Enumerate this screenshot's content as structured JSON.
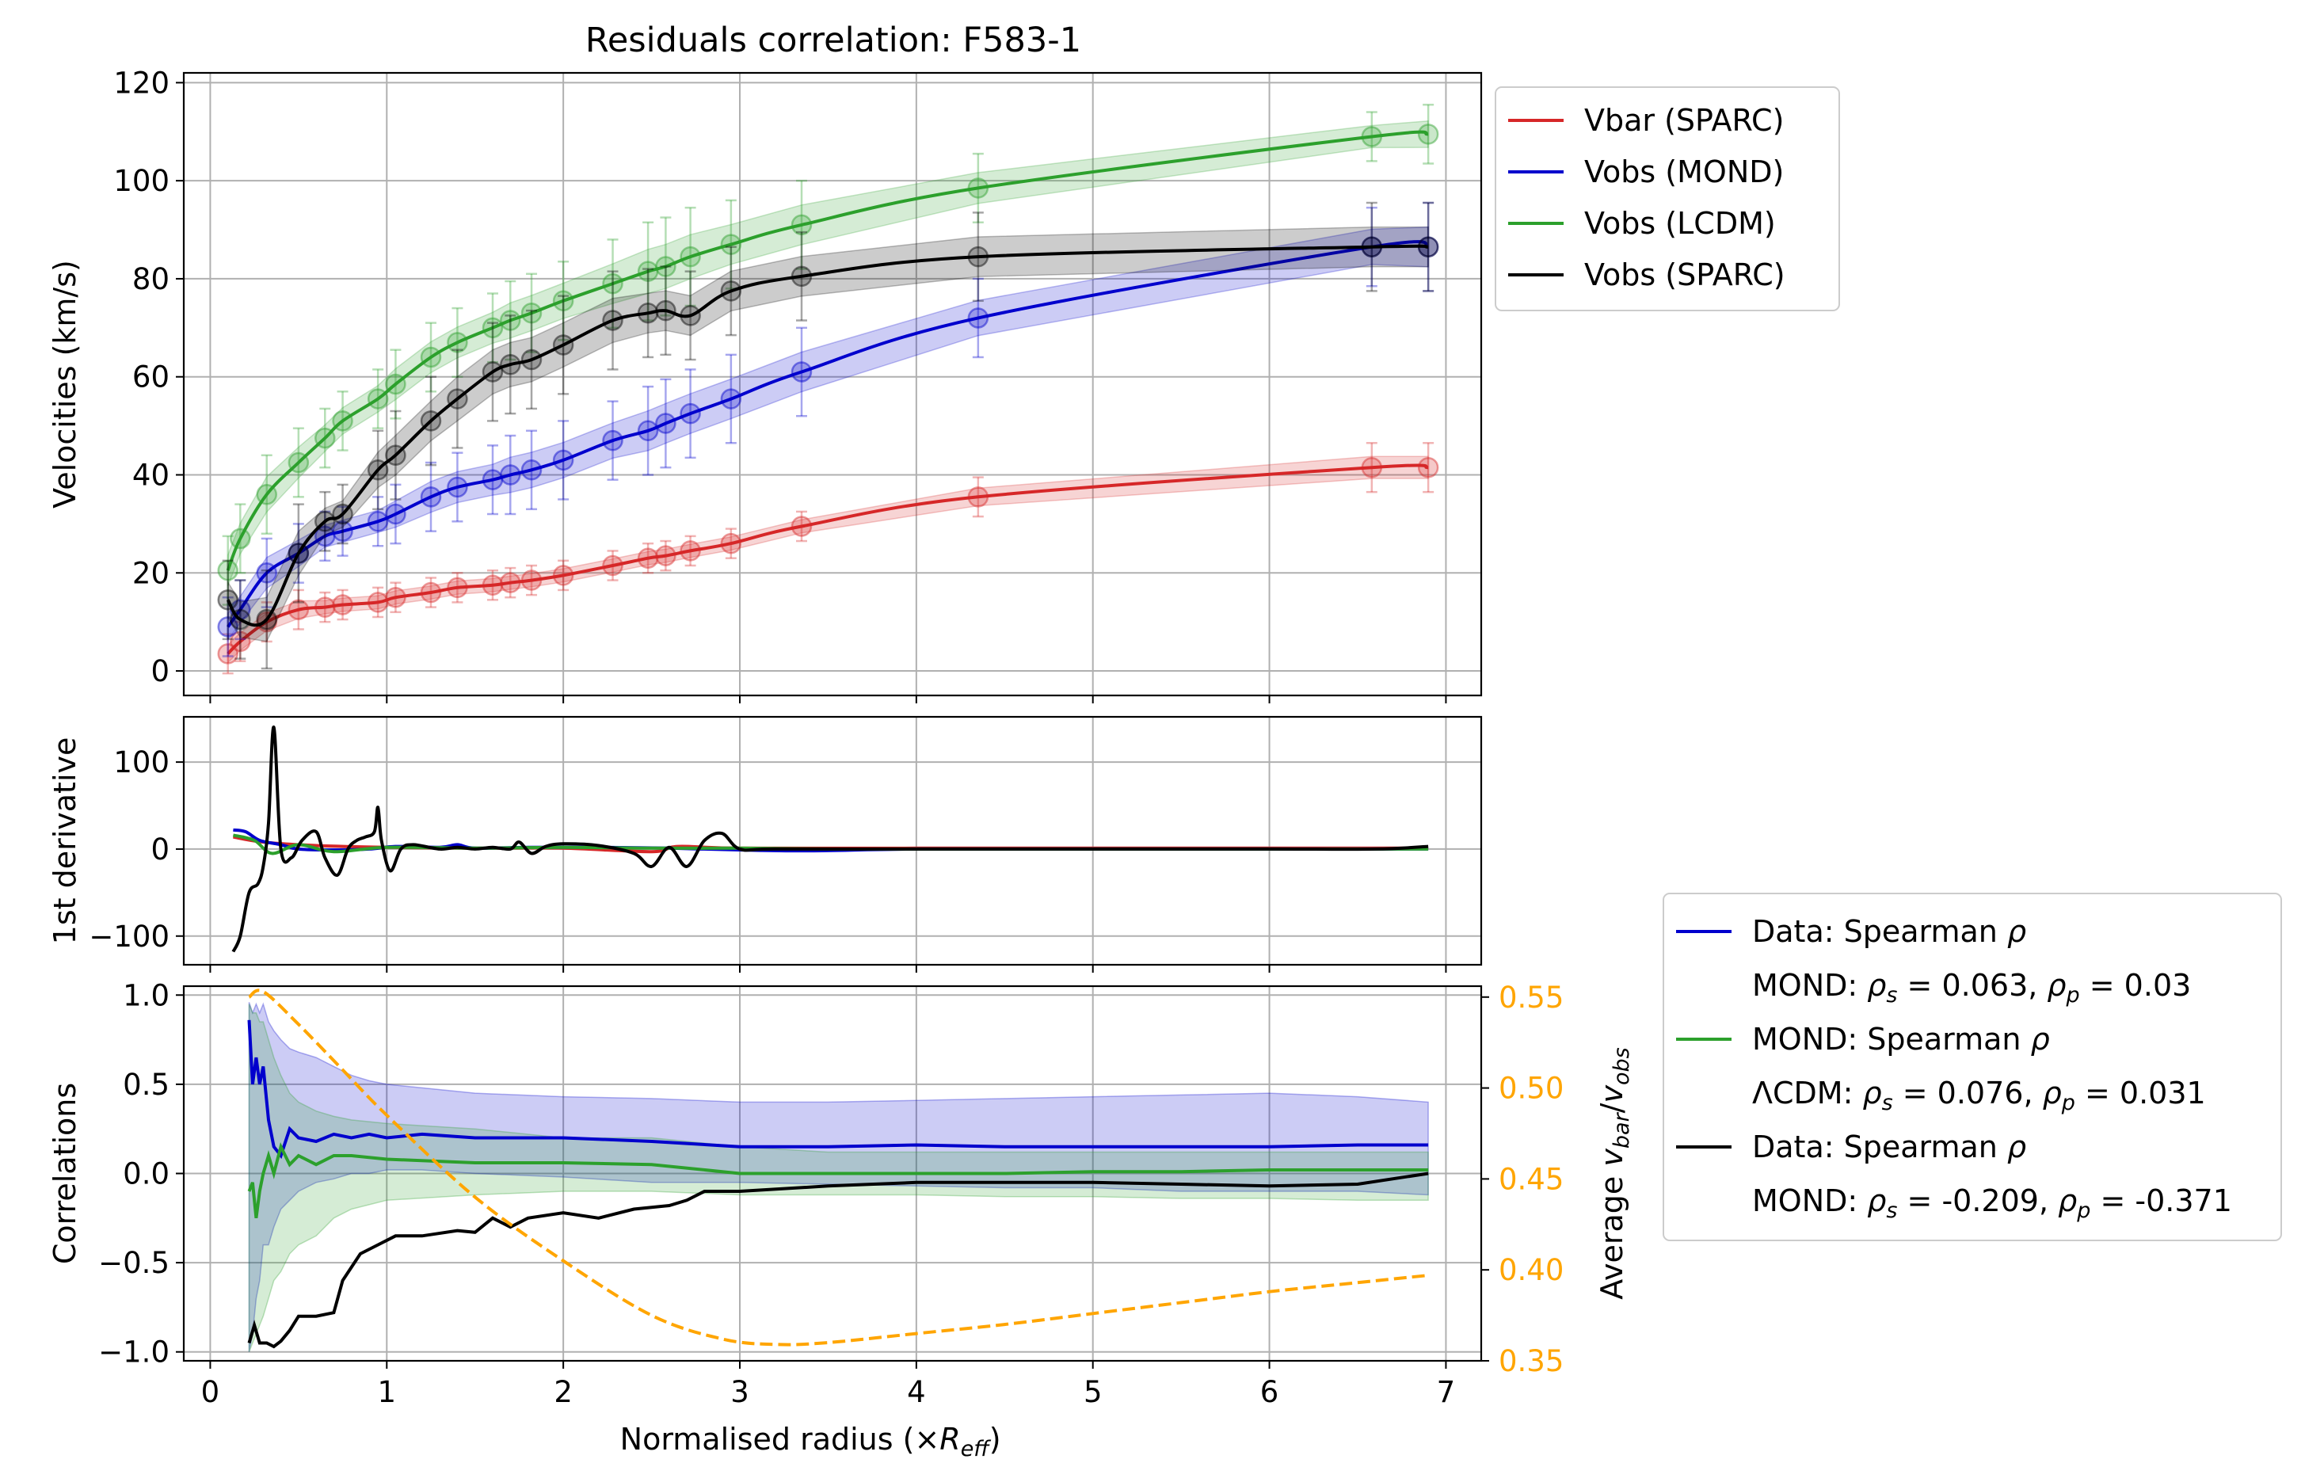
{
  "chart_data": {
    "title": "Residuals correlation: F583-1",
    "xlabel": "Normalised radius (×R_eff)",
    "xlabel_parts": [
      "Normalised radius (×",
      "R",
      "eff",
      ")"
    ],
    "xlim": [
      -0.15,
      7.2
    ],
    "xticks": [
      0,
      1,
      2,
      3,
      4,
      5,
      6,
      7
    ],
    "colors": {
      "vbar": "#d62728",
      "mond": "#0000cd",
      "lcdm": "#2ca02c",
      "sparc": "#000000",
      "ratio": "#ffa500"
    },
    "panels": [
      {
        "type": "line",
        "ylabel": "Velocities (km/s)",
        "ylim": [
          -5,
          122
        ],
        "yticks": [
          0,
          20,
          40,
          60,
          80,
          100,
          120
        ],
        "grid": true,
        "legend": {
          "placement": "outside upper-right",
          "entries": [
            {
              "label": "Vbar (SPARC)",
              "color": "#d62728"
            },
            {
              "label": "Vobs (MOND)",
              "color": "#0000cd"
            },
            {
              "label": "Vobs (LCDM)",
              "color": "#2ca02c"
            },
            {
              "label": "Vobs (SPARC)",
              "color": "#000000"
            }
          ]
        },
        "radii": [
          0.1,
          0.17,
          0.32,
          0.5,
          0.65,
          0.75,
          0.95,
          1.05,
          1.25,
          1.4,
          1.6,
          1.7,
          1.82,
          2.0,
          2.28,
          2.48,
          2.58,
          2.72,
          2.95,
          3.35,
          4.35,
          6.58,
          6.9
        ],
        "series": [
          {
            "name": "Vbar (SPARC)",
            "color": "#d62728",
            "values": [
              3.5,
              6,
              10,
              12.5,
              13,
              13.5,
              14,
              15,
              16,
              17,
              17.5,
              18,
              18.5,
              19.5,
              21.5,
              23,
              23.5,
              24.5,
              26,
              29.5,
              35.5,
              41.5,
              41.5
            ],
            "errors": [
              4,
              4,
              4,
              4,
              3,
              3,
              3,
              3,
              3,
              3,
              3,
              3,
              3,
              3,
              3,
              3,
              3,
              3,
              3,
              3,
              4,
              5,
              5
            ]
          },
          {
            "name": "Vobs (MOND)",
            "color": "#0000cd",
            "values": [
              9,
              12.5,
              20,
              24,
              27.5,
              28.5,
              30.5,
              32,
              35.5,
              37.5,
              39,
              40,
              41,
              43,
              47,
              49,
              50.5,
              52.5,
              55.5,
              61,
              72,
              86.5,
              86.5
            ],
            "errors": [
              6,
              6,
              7,
              6,
              5,
              5,
              5,
              6,
              7,
              7,
              7,
              8,
              8,
              8,
              8,
              9,
              9,
              9,
              9,
              9,
              8,
              8,
              9
            ]
          },
          {
            "name": "Vobs (LCDM)",
            "color": "#2ca02c",
            "values": [
              20.5,
              27,
              36,
              42.5,
              47.5,
              51,
              55.5,
              58.5,
              64,
              67,
              70,
              71.5,
              73,
              75.5,
              79,
              81.5,
              82.5,
              84.5,
              87,
              91,
              98.5,
              109,
              109.5
            ],
            "errors": [
              7,
              7,
              8,
              7,
              6,
              6,
              6,
              7,
              7,
              7,
              7,
              8,
              8,
              8,
              9,
              10,
              10,
              10,
              9,
              9,
              7,
              5,
              6
            ]
          },
          {
            "name": "Vobs (SPARC)",
            "color": "#000000",
            "values": [
              14.5,
              10.5,
              10.5,
              24,
              30.5,
              32,
              41,
              44,
              51,
              55.5,
              61,
              62.5,
              63.5,
              66.5,
              71.5,
              73,
              73.5,
              72.5,
              77.5,
              80.5,
              84.5,
              86.5,
              86.5
            ],
            "errors": [
              8,
              8,
              10,
              10,
              6,
              6,
              8,
              9,
              9,
              10,
              10,
              10,
              10,
              10,
              10,
              9,
              9,
              9,
              9,
              9,
              9,
              9,
              9
            ]
          }
        ]
      },
      {
        "type": "line",
        "ylabel": "1st derivative",
        "ylim": [
          -133,
          152
        ],
        "yticks": [
          -100,
          0,
          100
        ],
        "ytick_labels": [
          "−100",
          "0",
          "100"
        ],
        "grid": true,
        "series": [
          {
            "name": "Vbar (SPARC)",
            "color": "#d62728",
            "x": [
              0.13,
              0.3,
              0.6,
              1.0,
              1.5,
              2.0,
              2.5,
              2.65,
              3.0,
              4.0,
              5.0,
              6.0,
              6.6,
              6.9
            ],
            "values": [
              14,
              8,
              4,
              2,
              1,
              1,
              -3,
              3,
              1,
              1,
              1,
              1,
              1,
              1
            ]
          },
          {
            "name": "Vobs (MOND)",
            "color": "#0000cd",
            "x": [
              0.13,
              0.2,
              0.28,
              0.4,
              0.5,
              0.7,
              0.9,
              1.05,
              1.3,
              1.4,
              1.5,
              1.8,
              2.2,
              2.6,
              3.0,
              3.4,
              4.0,
              5.0,
              6.0,
              6.9
            ],
            "values": [
              22,
              20,
              10,
              5,
              0,
              -1,
              0,
              3,
              2,
              5,
              1,
              2,
              2,
              1,
              -1,
              -2,
              0,
              0,
              0,
              0
            ]
          },
          {
            "name": "Vobs (LCDM)",
            "color": "#2ca02c",
            "x": [
              0.13,
              0.25,
              0.35,
              0.5,
              0.7,
              1.0,
              1.5,
              2.0,
              2.5,
              3.0,
              3.5,
              4.0,
              5.0,
              6.0,
              6.9
            ],
            "values": [
              16,
              10,
              -5,
              5,
              -3,
              2,
              1,
              2,
              1,
              1,
              0,
              0,
              0,
              0,
              0
            ]
          },
          {
            "name": "Vobs (SPARC)",
            "color": "#000000",
            "x": [
              0.13,
              0.17,
              0.22,
              0.27,
              0.3,
              0.33,
              0.36,
              0.4,
              0.46,
              0.52,
              0.6,
              0.65,
              0.72,
              0.78,
              0.83,
              0.88,
              0.93,
              0.95,
              0.97,
              1.02,
              1.08,
              1.15,
              1.3,
              1.4,
              1.5,
              1.6,
              1.7,
              1.75,
              1.82,
              1.9,
              2.0,
              2.2,
              2.4,
              2.5,
              2.6,
              2.7,
              2.8,
              2.9,
              3.0,
              3.2,
              4.0,
              5.0,
              6.0,
              6.6,
              6.9
            ],
            "values": [
              -118,
              -100,
              -50,
              -40,
              -20,
              30,
              140,
              0,
              -10,
              10,
              20,
              -10,
              -30,
              0,
              10,
              14,
              20,
              48,
              10,
              -25,
              0,
              5,
              0,
              2,
              0,
              2,
              0,
              8,
              -5,
              3,
              6,
              4,
              -5,
              -20,
              2,
              -20,
              10,
              18,
              0,
              0,
              0,
              0,
              0,
              0,
              3
            ]
          }
        ]
      },
      {
        "type": "line",
        "ylabel": "Correlations",
        "ylim": [
          -1.05,
          1.05
        ],
        "yticks": [
          -1.0,
          -0.5,
          0.0,
          0.5,
          1.0
        ],
        "ytick_labels": [
          "−1.0",
          "−0.5",
          "0.0",
          "0.5",
          "1.0"
        ],
        "grid": true,
        "secondary_axis": {
          "ylabel": "Average v_bar/v_obs",
          "ylabel_parts": [
            "Average ",
            "v",
            "bar",
            "/",
            "v",
            "obs"
          ],
          "ylim": [
            0.35,
            0.556
          ],
          "yticks": [
            0.35,
            0.4,
            0.45,
            0.5,
            0.55
          ],
          "ytick_labels": [
            "0.35",
            "0.40",
            "0.45",
            "0.50",
            "0.55"
          ],
          "color": "#ffa500",
          "x": [
            0.22,
            0.3,
            0.5,
            0.75,
            1.0,
            1.5,
            2.0,
            2.5,
            2.9,
            3.2,
            3.5,
            4.0,
            4.5,
            5.0,
            5.5,
            6.0,
            6.5,
            6.9
          ],
          "values": [
            0.55,
            0.553,
            0.535,
            0.51,
            0.485,
            0.44,
            0.405,
            0.375,
            0.362,
            0.359,
            0.36,
            0.365,
            0.37,
            0.376,
            0.382,
            0.388,
            0.393,
            0.397
          ]
        },
        "legend": {
          "placement": "outside lower-right",
          "entries": [
            {
              "label": "Data: Spearman ρ",
              "color": "#0000cd",
              "parts": [
                "Data: Spearman ",
                "ρ"
              ],
              "stats": [
                "MOND: ",
                "ρ",
                "s",
                " = 0.063, ",
                "ρ",
                "p",
                " = 0.03"
              ]
            },
            {
              "label": "MOND: Spearman ρ",
              "color": "#2ca02c",
              "parts": [
                "MOND: Spearman ",
                "ρ"
              ],
              "stats": [
                "ΛCDM: ",
                "ρ",
                "s",
                " = 0.076, ",
                "ρ",
                "p",
                " = 0.031"
              ]
            },
            {
              "label": "Data: Spearman ρ",
              "color": "#000000",
              "parts": [
                "Data: Spearman ",
                "ρ"
              ],
              "stats": [
                "MOND: ",
                "ρ",
                "s",
                " = -0.209, ",
                "ρ",
                "p",
                " = -0.371"
              ]
            }
          ]
        },
        "series": [
          {
            "name": "Data: Spearman ρ",
            "color": "#0000cd",
            "x": [
              0.22,
              0.24,
              0.26,
              0.28,
              0.3,
              0.33,
              0.36,
              0.4,
              0.45,
              0.5,
              0.6,
              0.7,
              0.8,
              0.9,
              1.0,
              1.2,
              1.5,
              2.0,
              2.5,
              3.0,
              3.5,
              4.0,
              4.5,
              5.0,
              5.5,
              6.0,
              6.5,
              6.9
            ],
            "values": [
              0.86,
              0.5,
              0.65,
              0.5,
              0.6,
              0.3,
              0.15,
              0.1,
              0.25,
              0.2,
              0.18,
              0.22,
              0.2,
              0.22,
              0.2,
              0.22,
              0.2,
              0.2,
              0.18,
              0.15,
              0.15,
              0.16,
              0.15,
              0.15,
              0.15,
              0.15,
              0.16,
              0.16
            ],
            "band_upper": [
              0.96,
              0.9,
              0.95,
              0.9,
              0.95,
              0.85,
              0.8,
              0.75,
              0.7,
              0.68,
              0.65,
              0.6,
              0.55,
              0.52,
              0.5,
              0.48,
              0.45,
              0.43,
              0.42,
              0.4,
              0.4,
              0.41,
              0.42,
              0.43,
              0.44,
              0.45,
              0.43,
              0.4
            ],
            "band_lower": [
              -1.0,
              -0.9,
              -0.7,
              -0.6,
              -0.4,
              -0.4,
              -0.3,
              -0.2,
              -0.15,
              -0.1,
              -0.05,
              -0.03,
              0,
              0,
              0.02,
              0.02,
              0,
              -0.02,
              -0.05,
              -0.05,
              -0.06,
              -0.07,
              -0.08,
              -0.08,
              -0.1,
              -0.1,
              -0.1,
              -0.12
            ]
          },
          {
            "name": "MOND: Spearman ρ",
            "color": "#2ca02c",
            "x": [
              0.22,
              0.24,
              0.26,
              0.28,
              0.3,
              0.33,
              0.36,
              0.4,
              0.45,
              0.5,
              0.6,
              0.7,
              0.8,
              1.0,
              1.5,
              2.0,
              2.5,
              3.0,
              3.5,
              4.0,
              4.5,
              5.0,
              5.5,
              6.0,
              6.5,
              6.9
            ],
            "values": [
              -0.1,
              -0.05,
              -0.25,
              -0.1,
              0.0,
              0.1,
              0.0,
              0.15,
              0.05,
              0.1,
              0.05,
              0.1,
              0.1,
              0.08,
              0.06,
              0.06,
              0.05,
              0.0,
              0.0,
              0.0,
              0.0,
              0.01,
              0.01,
              0.02,
              0.02,
              0.02
            ],
            "band_upper": [
              0.95,
              0.9,
              0.9,
              0.85,
              0.85,
              0.75,
              0.65,
              0.55,
              0.45,
              0.4,
              0.35,
              0.32,
              0.3,
              0.28,
              0.25,
              0.2,
              0.2,
              0.15,
              0.12,
              0.12,
              0.12,
              0.12,
              0.12,
              0.12,
              0.12,
              0.12
            ],
            "band_lower": [
              -1.0,
              -0.95,
              -0.9,
              -0.85,
              -0.8,
              -0.7,
              -0.6,
              -0.55,
              -0.45,
              -0.4,
              -0.35,
              -0.25,
              -0.2,
              -0.15,
              -0.12,
              -0.1,
              -0.1,
              -0.12,
              -0.12,
              -0.12,
              -0.13,
              -0.13,
              -0.14,
              -0.14,
              -0.15,
              -0.15
            ]
          },
          {
            "name": "Data: Spearman ρ",
            "color": "#000000",
            "x": [
              0.22,
              0.25,
              0.28,
              0.32,
              0.36,
              0.4,
              0.45,
              0.5,
              0.6,
              0.7,
              0.75,
              0.85,
              0.95,
              1.05,
              1.2,
              1.4,
              1.5,
              1.6,
              1.7,
              1.8,
              2.0,
              2.2,
              2.4,
              2.6,
              2.7,
              2.8,
              3.0,
              3.5,
              4.0,
              4.5,
              5.0,
              5.5,
              6.0,
              6.5,
              6.9
            ],
            "values": [
              -0.95,
              -0.85,
              -0.95,
              -0.95,
              -0.97,
              -0.94,
              -0.88,
              -0.8,
              -0.8,
              -0.78,
              -0.6,
              -0.45,
              -0.4,
              -0.35,
              -0.35,
              -0.32,
              -0.33,
              -0.25,
              -0.3,
              -0.25,
              -0.22,
              -0.25,
              -0.2,
              -0.18,
              -0.15,
              -0.1,
              -0.1,
              -0.07,
              -0.05,
              -0.05,
              -0.05,
              -0.06,
              -0.07,
              -0.06,
              0.0
            ]
          }
        ]
      }
    ]
  }
}
